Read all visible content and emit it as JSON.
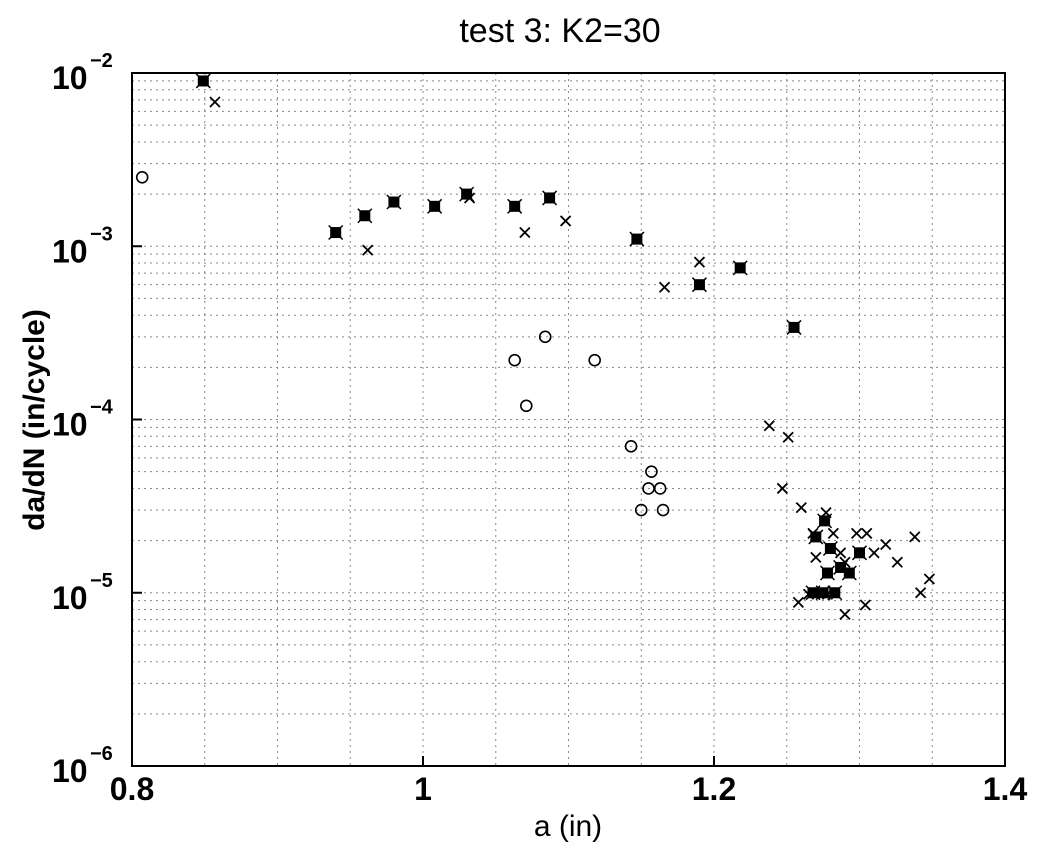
{
  "chart_data": {
    "type": "scatter",
    "title": "test 3:   K2=30",
    "xlabel": "a (in)",
    "ylabel": "da/dN  (in/cycle)",
    "xlim": [
      0.8,
      1.4
    ],
    "ylim": [
      1e-06,
      0.01
    ],
    "yscale": "log",
    "grid": "dotted",
    "x_ticks": [
      {
        "value": 0.8,
        "label": "0.8"
      },
      {
        "value": 1.0,
        "label": "1"
      },
      {
        "value": 1.2,
        "label": "1.2"
      },
      {
        "value": 1.4,
        "label": "1.4"
      }
    ],
    "y_ticks": [
      {
        "value": 0.01,
        "base": "10",
        "exp": "−2"
      },
      {
        "value": 0.001,
        "base": "10",
        "exp": "−3"
      },
      {
        "value": 0.0001,
        "base": "10",
        "exp": "−4"
      },
      {
        "value": 1e-05,
        "base": "10",
        "exp": "−5"
      },
      {
        "value": 1e-06,
        "base": "10",
        "exp": "−6"
      }
    ],
    "series": [
      {
        "marker": "o",
        "points": [
          [
            0.807,
            0.0025
          ],
          [
            1.063,
            0.00022
          ],
          [
            1.084,
            0.0003
          ],
          [
            1.118,
            0.00022
          ],
          [
            1.071,
            0.00012
          ],
          [
            1.143,
            7e-05
          ],
          [
            1.157,
            5e-05
          ],
          [
            1.155,
            4e-05
          ],
          [
            1.163,
            4e-05
          ],
          [
            1.15,
            3e-05
          ],
          [
            1.165,
            3e-05
          ]
        ]
      },
      {
        "marker": "x",
        "points": [
          [
            0.857,
            0.0068
          ],
          [
            0.962,
            0.00095
          ],
          [
            1.032,
            0.0019
          ],
          [
            1.07,
            0.0012
          ],
          [
            1.098,
            0.0014
          ],
          [
            1.166,
            0.00058
          ],
          [
            1.19,
            0.00081
          ],
          [
            1.238,
            9.2e-05
          ],
          [
            1.251,
            7.9e-05
          ],
          [
            1.247,
            4e-05
          ],
          [
            1.26,
            3.1e-05
          ],
          [
            1.268,
            2.2e-05
          ],
          [
            1.277,
            2.9e-05
          ],
          [
            1.282,
            2.2e-05
          ],
          [
            1.287,
            1.7e-05
          ],
          [
            1.298,
            2.2e-05
          ],
          [
            1.305,
            2.2e-05
          ],
          [
            1.31,
            1.7e-05
          ],
          [
            1.318,
            1.9e-05
          ],
          [
            1.326,
            1.5e-05
          ],
          [
            1.338,
            2.1e-05
          ],
          [
            1.348,
            1.2e-05
          ],
          [
            1.342,
            1e-05
          ],
          [
            1.304,
            8.5e-06
          ],
          [
            1.29,
            7.5e-06
          ],
          [
            1.278,
            9.8e-06
          ],
          [
            1.265,
            9.8e-06
          ],
          [
            1.258,
            8.8e-06
          ],
          [
            1.27,
            1.6e-05
          ],
          [
            1.29,
            1.5e-05
          ]
        ]
      },
      {
        "marker": "*",
        "points": [
          [
            0.849,
            0.009
          ],
          [
            0.94,
            0.0012
          ],
          [
            0.96,
            0.0015
          ],
          [
            0.98,
            0.0018
          ],
          [
            1.008,
            0.0017
          ],
          [
            1.03,
            0.002
          ],
          [
            1.063,
            0.0017
          ],
          [
            1.087,
            0.0019
          ],
          [
            1.147,
            0.0011
          ],
          [
            1.19,
            0.0006
          ],
          [
            1.218,
            0.00075
          ],
          [
            1.255,
            0.00034
          ],
          [
            1.27,
            2.1e-05
          ],
          [
            1.276,
            2.6e-05
          ],
          [
            1.28,
            1.8e-05
          ],
          [
            1.287,
            1.4e-05
          ],
          [
            1.293,
            1.3e-05
          ],
          [
            1.3,
            1.7e-05
          ],
          [
            1.278,
            1.3e-05
          ],
          [
            1.275,
            1e-05
          ],
          [
            1.283,
            1e-05
          ],
          [
            1.268,
            1e-05
          ]
        ]
      }
    ]
  }
}
